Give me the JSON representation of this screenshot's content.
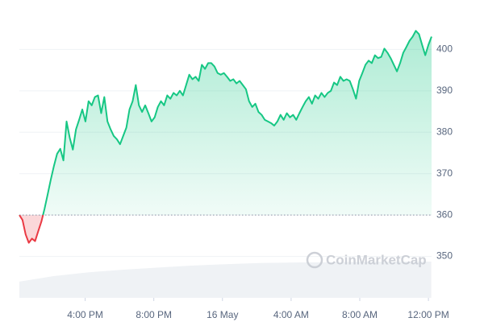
{
  "chart_data": {
    "type": "line",
    "watermark": "CoinMarketCap",
    "baseline": 360,
    "x": [
      0,
      11,
      22,
      33,
      44,
      55,
      66,
      77,
      88,
      99,
      110,
      121,
      132,
      143,
      154,
      165,
      176,
      187,
      198,
      209,
      220,
      231,
      242,
      253,
      264,
      275,
      286,
      297,
      308,
      319,
      330,
      341,
      352,
      363,
      374,
      385,
      396,
      407,
      418,
      429,
      440,
      451,
      462,
      473,
      484,
      495,
      506,
      517,
      528,
      539,
      550,
      561,
      572,
      583,
      594,
      605,
      616,
      627,
      638,
      649,
      660,
      671,
      682,
      693,
      704,
      715,
      726,
      737,
      748,
      759,
      770,
      781,
      792,
      803,
      814,
      825,
      836,
      847,
      858,
      869,
      880,
      891,
      902,
      913,
      924,
      935,
      946,
      957,
      968,
      979,
      990,
      1001,
      1012,
      1023,
      1034,
      1045,
      1056,
      1067,
      1078,
      1089,
      1100,
      1111,
      1122,
      1133,
      1144,
      1155,
      1166,
      1177,
      1188,
      1199,
      1210,
      1221,
      1232,
      1243,
      1254,
      1265,
      1276,
      1287,
      1298,
      1309,
      1320,
      1331,
      1342,
      1353,
      1364,
      1375,
      1386,
      1397,
      1408,
      1419,
      1430,
      1441
    ],
    "series": [
      {
        "color": "#16c784",
        "below_color": "#ea3943",
        "values": [
          360.0,
          358.8,
          355.3,
          353.3,
          354.3,
          353.7,
          356.1,
          358.4,
          361.5,
          365.0,
          368.6,
          371.9,
          374.8,
          376.0,
          373.2,
          382.6,
          378.7,
          375.8,
          380.7,
          383.0,
          385.5,
          382.6,
          387.5,
          386.5,
          388.5,
          388.9,
          384.6,
          388.5,
          382.6,
          380.7,
          379.1,
          378.3,
          377.1,
          379.1,
          381.1,
          385.5,
          387.5,
          391.4,
          386.5,
          384.9,
          386.5,
          384.6,
          382.6,
          383.6,
          386.1,
          387.5,
          386.5,
          388.9,
          388.1,
          389.5,
          388.9,
          390.0,
          388.9,
          391.4,
          393.9,
          392.8,
          393.4,
          392.4,
          396.3,
          395.3,
          396.7,
          396.7,
          395.9,
          394.3,
          393.9,
          394.3,
          393.4,
          392.4,
          392.8,
          391.8,
          392.4,
          391.4,
          390.4,
          387.5,
          386.1,
          386.9,
          384.9,
          384.2,
          383.0,
          382.6,
          382.2,
          381.6,
          382.6,
          384.2,
          383.0,
          384.6,
          383.6,
          384.2,
          383.0,
          384.6,
          386.1,
          387.5,
          388.5,
          386.9,
          388.9,
          388.1,
          389.5,
          388.5,
          389.5,
          390.0,
          392.0,
          391.4,
          393.4,
          392.4,
          392.8,
          392.4,
          390.4,
          388.1,
          392.4,
          394.3,
          396.3,
          397.3,
          396.7,
          398.6,
          397.9,
          398.2,
          400.2,
          399.2,
          397.9,
          396.3,
          394.7,
          396.7,
          399.2,
          400.6,
          402.1,
          403.1,
          404.5,
          403.7,
          401.1,
          398.6,
          401.1,
          403.1
        ]
      }
    ],
    "volume": {
      "color": "#eff2f5",
      "axis": "y2",
      "x": [
        0,
        120,
        240,
        360,
        480,
        600,
        720,
        840,
        960,
        1080,
        1200,
        1320,
        1440
      ],
      "values": [
        5.6,
        7.5,
        8.8,
        9.7,
        10.4,
        11.1,
        11.6,
        12.0,
        12.2,
        12.3,
        12.4,
        12.5,
        12.5
      ]
    },
    "xlim": [
      0,
      1441
    ],
    "ylim": [
      340,
      410
    ],
    "y2lim": [
      0,
      100
    ],
    "yticks": [
      350,
      360,
      370,
      380,
      390,
      400
    ],
    "xticks": [
      {
        "value": 230,
        "label": "4:00 PM"
      },
      {
        "value": 470,
        "label": "8:00 PM"
      },
      {
        "value": 710,
        "label": "16 May"
      },
      {
        "value": 950,
        "label": "4:00 AM"
      },
      {
        "value": 1190,
        "label": "8:00 AM"
      },
      {
        "value": 1430,
        "label": "12:00 PM"
      }
    ],
    "grid": true
  }
}
